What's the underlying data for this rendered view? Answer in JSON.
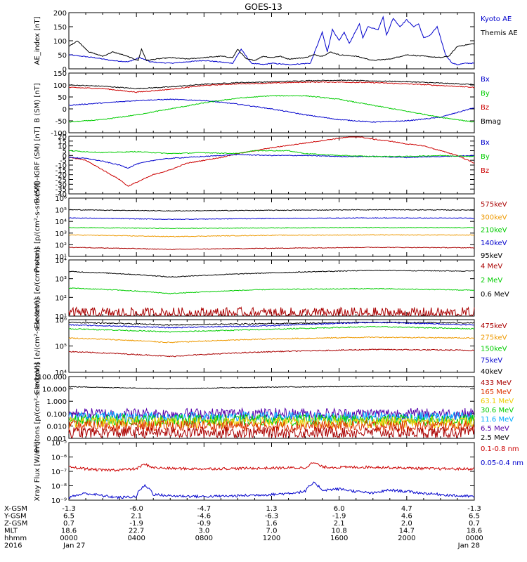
{
  "title": "GOES-13",
  "chart_data": [
    {
      "type": "line",
      "ylabel": "AE_index [nT]",
      "yscale": "linear",
      "ylim": [
        0,
        200
      ],
      "yticks": [
        "0",
        "50",
        "100",
        "150",
        "200"
      ],
      "legend": [
        {
          "label": "Kyoto AE",
          "color": "#0000cc"
        },
        {
          "label": "Themis AE",
          "color": "#000000"
        }
      ],
      "series": [
        {
          "name": "Kyoto AE",
          "color": "#0000cc",
          "x": [
            0,
            1.5,
            2.5,
            3.5,
            4.2,
            4.8,
            6,
            8,
            9.7,
            10.2,
            10.8,
            11.5,
            12,
            13,
            14.3,
            15,
            15.3,
            15.6,
            16,
            16.3,
            16.6,
            17.2,
            17.4,
            17.7,
            18.3,
            18.6,
            18.8,
            19.2,
            19.6,
            20,
            20.4,
            20.7,
            21,
            21.4,
            21.8,
            22.3,
            22.7,
            23,
            23.5,
            24
          ],
          "y": [
            50,
            40,
            30,
            25,
            40,
            25,
            20,
            30,
            20,
            70,
            20,
            15,
            20,
            15,
            20,
            130,
            60,
            140,
            100,
            130,
            90,
            160,
            110,
            150,
            140,
            185,
            120,
            180,
            150,
            175,
            150,
            160,
            110,
            120,
            150,
            50,
            20,
            15,
            20,
            20
          ]
        },
        {
          "name": "Themis AE",
          "color": "#000000",
          "x": [
            0,
            0.5,
            1.2,
            2,
            2.6,
            3.2,
            4.1,
            4.3,
            4.6,
            5.2,
            6,
            7,
            8,
            9,
            9.7,
            10,
            10.5,
            11,
            11.5,
            12,
            12.5,
            13,
            14,
            14.5,
            15,
            15.5,
            16,
            17,
            18,
            19,
            20,
            21,
            22,
            22.5,
            23,
            24
          ],
          "y": [
            80,
            100,
            60,
            45,
            60,
            50,
            30,
            70,
            30,
            35,
            40,
            35,
            40,
            45,
            40,
            70,
            35,
            30,
            45,
            40,
            45,
            35,
            40,
            50,
            45,
            60,
            50,
            45,
            30,
            35,
            50,
            45,
            40,
            45,
            80,
            90
          ]
        }
      ]
    },
    {
      "type": "line",
      "ylabel": "B (SM) [nT]",
      "yscale": "linear",
      "ylim": [
        -100,
        150
      ],
      "yticks": [
        "-100",
        "-50",
        "0",
        "50",
        "100",
        "150"
      ],
      "legend": [
        {
          "label": "Bx",
          "color": "#0000cc"
        },
        {
          "label": "By",
          "color": "#00cc00"
        },
        {
          "label": "Bz",
          "color": "#cc0000"
        },
        {
          "label": "Bmag",
          "color": "#000000"
        }
      ],
      "series": [
        {
          "name": "Bmag",
          "color": "#000000",
          "x": [
            0,
            2,
            4,
            6,
            8,
            10,
            12,
            14,
            16,
            18,
            20,
            22,
            24
          ],
          "y": [
            100,
            95,
            85,
            92,
            103,
            110,
            113,
            118,
            120,
            117,
            114,
            108,
            102
          ]
        },
        {
          "name": "Bz",
          "color": "#cc0000",
          "x": [
            0,
            2,
            4,
            6,
            8,
            10,
            12,
            14,
            16,
            18,
            20,
            22,
            24
          ],
          "y": [
            90,
            85,
            70,
            82,
            98,
            105,
            108,
            112,
            112,
            110,
            105,
            98,
            90
          ]
        },
        {
          "name": "Bx",
          "color": "#0000cc",
          "x": [
            0,
            2,
            4,
            6,
            8,
            10,
            12,
            14,
            16,
            18,
            20,
            22,
            24
          ],
          "y": [
            15,
            25,
            35,
            40,
            35,
            20,
            0,
            -25,
            -45,
            -55,
            -50,
            -35,
            5
          ]
        },
        {
          "name": "By",
          "color": "#00cc00",
          "x": [
            0,
            2,
            4,
            6,
            8,
            10,
            12,
            14,
            16,
            18,
            20,
            22,
            24
          ],
          "y": [
            -55,
            -45,
            -25,
            0,
            25,
            45,
            55,
            55,
            40,
            15,
            -10,
            -35,
            -55
          ]
        }
      ]
    },
    {
      "type": "line",
      "ylabel": "B (SM)-IGRF (SM) [nT]",
      "yscale": "linear",
      "ylim": [
        -40,
        20
      ],
      "yticks": [
        "-40",
        "-35",
        "-30",
        "-25",
        "-20",
        "-15",
        "-10",
        "-5",
        "0",
        "5",
        "10",
        "15",
        "20"
      ],
      "legend": [
        {
          "label": "Bx",
          "color": "#0000cc"
        },
        {
          "label": "By",
          "color": "#00cc00"
        },
        {
          "label": "Bz",
          "color": "#cc0000"
        }
      ],
      "series": [
        {
          "name": "Bz",
          "color": "#cc0000",
          "x": [
            0,
            1,
            2,
            3,
            3.5,
            4,
            5,
            6,
            7,
            8,
            9,
            10,
            11,
            12,
            14,
            16,
            17,
            18,
            19,
            20,
            21,
            22,
            23,
            24
          ],
          "y": [
            -2,
            -5,
            -15,
            -25,
            -32,
            -28,
            -20,
            -15,
            -8,
            -5,
            -2,
            2,
            5,
            8,
            13,
            18,
            20,
            17,
            15,
            12,
            10,
            5,
            0,
            -8
          ]
        },
        {
          "name": "Bx",
          "color": "#0000cc",
          "x": [
            0,
            1,
            2,
            3,
            3.5,
            4,
            5,
            6,
            7,
            8,
            10,
            12,
            14,
            16,
            18,
            20,
            22,
            24
          ],
          "y": [
            -2,
            -3,
            -6,
            -10,
            -13,
            -9,
            -5,
            -3,
            -2,
            -1,
            1,
            0,
            0,
            -1,
            -1,
            -2,
            -1,
            0
          ]
        },
        {
          "name": "By",
          "color": "#00cc00",
          "x": [
            0,
            2,
            4,
            6,
            8,
            10,
            11,
            12,
            13,
            14,
            16,
            18,
            20,
            22,
            24
          ],
          "y": [
            5,
            3,
            4,
            2,
            3,
            2,
            5,
            5,
            5,
            2,
            0,
            -1,
            -1,
            0,
            -1
          ]
        }
      ]
    },
    {
      "type": "line",
      "ylabel": "Protons [p/(cm²-s-sr-keV)]",
      "yscale": "log",
      "ylim": [
        10,
        1000000
      ],
      "yticks": [
        "10¹",
        "10²",
        "10³",
        "10⁴",
        "10⁵",
        "10⁶"
      ],
      "legend": [
        {
          "label": "575keV",
          "color": "#aa0000"
        },
        {
          "label": "300keV",
          "color": "#ee9900"
        },
        {
          "label": "210keV",
          "color": "#00cc00"
        },
        {
          "label": "140keV",
          "color": "#0000cc"
        },
        {
          "label": "95keV",
          "color": "#000000"
        }
      ],
      "series": [
        {
          "name": "95keV",
          "color": "#000000",
          "levels": [
            100000,
            80000,
            90000,
            100000,
            95000
          ]
        },
        {
          "name": "140keV",
          "color": "#0000cc",
          "levels": [
            20000,
            15000,
            18000,
            20000,
            19000
          ]
        },
        {
          "name": "210keV",
          "color": "#00cc00",
          "levels": [
            3000,
            2500,
            2800,
            3000,
            2900
          ]
        },
        {
          "name": "300keV",
          "color": "#ee9900",
          "levels": [
            700,
            500,
            650,
            700,
            680
          ]
        },
        {
          "name": "575keV",
          "color": "#aa0000",
          "levels": [
            60,
            40,
            50,
            60,
            55
          ]
        }
      ]
    },
    {
      "type": "line",
      "ylabel": "Electrons [e/(cm²-s-sr)]",
      "yscale": "log",
      "ylim": [
        10,
        100000
      ],
      "yticks": [
        "10¹",
        "10²",
        "10³",
        "10⁴"
      ],
      "legend": [
        {
          "label": "4 MeV",
          "color": "#aa0000"
        },
        {
          "label": "2 MeV",
          "color": "#00cc00"
        },
        {
          "label": "0.6 MeV",
          "color": "#000000"
        }
      ],
      "series": [
        {
          "name": "0.6 MeV",
          "color": "#000000",
          "levels": [
            15000,
            6000,
            12000,
            18000,
            16000
          ]
        },
        {
          "name": "2 MeV",
          "color": "#00cc00",
          "levels": [
            1000,
            400,
            800,
            900,
            700
          ]
        },
        {
          "name": "4 MeV",
          "color": "#aa0000",
          "levels": [
            15,
            15,
            15,
            15,
            15
          ]
        }
      ]
    },
    {
      "type": "line",
      "ylabel": "Electrons [e/(cm²-s-sr-keV)]",
      "yscale": "log",
      "ylim": [
        1000,
        1000000
      ],
      "yticks": [
        "10⁴",
        "10⁵",
        "10⁶"
      ],
      "legend": [
        {
          "label": "475keV",
          "color": "#aa0000"
        },
        {
          "label": "275keV",
          "color": "#ee9900"
        },
        {
          "label": "150keV",
          "color": "#00cc00"
        },
        {
          "label": "75keV",
          "color": "#0000cc"
        },
        {
          "label": "40keV",
          "color": "#000000"
        }
      ],
      "series": [
        {
          "name": "40keV",
          "color": "#000000",
          "levels": [
            700000,
            500000,
            600000,
            700000,
            650000
          ]
        },
        {
          "name": "75keV",
          "color": "#0000cc",
          "levels": [
            500000,
            350000,
            450000,
            700000,
            500000
          ]
        },
        {
          "name": "150keV",
          "color": "#00cc00",
          "levels": [
            300000,
            200000,
            280000,
            400000,
            300000
          ]
        },
        {
          "name": "275keV",
          "color": "#ee9900",
          "levels": [
            90000,
            50000,
            80000,
            100000,
            90000
          ]
        },
        {
          "name": "475keV",
          "color": "#aa0000",
          "levels": [
            15000,
            8000,
            15000,
            20000,
            18000
          ]
        }
      ]
    },
    {
      "type": "line",
      "ylabel": "Protons [p/(cm²-s-sr-keV)]",
      "yscale": "log",
      "ylim": [
        0.001,
        100
      ],
      "yticks": [
        "0.001",
        "0.010",
        "0.100",
        "1.000",
        "10.000",
        "100.000"
      ],
      "legend": [
        {
          "label": "433 MeV",
          "color": "#aa0000"
        },
        {
          "label": "165 MeV",
          "color": "#dd3300"
        },
        {
          "label": "63.1 MeV",
          "color": "#eecc00"
        },
        {
          "label": "30.6 MeV",
          "color": "#00cc00"
        },
        {
          "label": "11.6 MeV",
          "color": "#00aaff"
        },
        {
          "label": "6.5 MeV",
          "color": "#5500aa"
        },
        {
          "label": "2.5 MeV",
          "color": "#000000"
        }
      ],
      "series": [
        {
          "name": "2.5 MeV",
          "color": "#000000",
          "levels": [
            15,
            10,
            14,
            16,
            15
          ]
        },
        {
          "name": "6.5 MeV",
          "color": "#5500aa",
          "levels": [
            0.1,
            0.1,
            0.1,
            0.1,
            0.1
          ]
        },
        {
          "name": "11.6 MeV",
          "color": "#00aaff",
          "levels": [
            0.05,
            0.05,
            0.05,
            0.05,
            0.05
          ]
        },
        {
          "name": "30.6 MeV",
          "color": "#00cc00",
          "levels": [
            0.03,
            0.03,
            0.03,
            0.03,
            0.03
          ]
        },
        {
          "name": "63.1 MeV",
          "color": "#eecc00",
          "levels": [
            0.02,
            0.02,
            0.02,
            0.02,
            0.02
          ]
        },
        {
          "name": "165 MeV",
          "color": "#dd3300",
          "levels": [
            0.01,
            0.01,
            0.01,
            0.01,
            0.01
          ]
        },
        {
          "name": "433 MeV",
          "color": "#aa0000",
          "levels": [
            0.003,
            0.003,
            0.003,
            0.003,
            0.003
          ]
        }
      ]
    },
    {
      "type": "line",
      "ylabel": "Xray Flux [W/m²]",
      "yscale": "log",
      "ylim": [
        1e-09,
        1e-05
      ],
      "yticks": [
        "10⁻⁹",
        "10⁻⁸",
        "10⁻⁷",
        "10⁻⁶",
        "10⁻⁵"
      ],
      "legend": [
        {
          "label": "0.1-0.8 nm",
          "color": "#cc0000"
        },
        {
          "label": "0.05-0.4 nm",
          "color": "#0000cc"
        }
      ],
      "series": [
        {
          "name": "0.1-0.8 nm",
          "color": "#cc0000",
          "x": [
            0,
            1,
            2,
            3,
            4,
            4.5,
            5,
            6,
            8,
            10,
            12,
            14,
            14.5,
            15,
            16,
            18,
            20,
            22,
            24
          ],
          "y": [
            2e-07,
            1.5e-07,
            1.2e-07,
            1.3e-07,
            1.5e-07,
            3e-07,
            1.8e-07,
            1.6e-07,
            1.5e-07,
            1.6e-07,
            1.7e-07,
            1.8e-07,
            4e-07,
            2e-07,
            1.9e-07,
            2e-07,
            1.7e-07,
            1.5e-07,
            1.5e-07
          ]
        },
        {
          "name": "0.05-0.4 nm",
          "color": "#0000cc",
          "x": [
            0,
            1,
            2,
            3,
            4,
            4.5,
            5,
            6,
            8,
            10,
            12,
            13,
            14,
            14.5,
            15,
            16,
            17,
            18,
            19,
            20,
            21,
            22,
            23,
            24
          ],
          "y": [
            1.5e-09,
            3e-09,
            2e-09,
            1.5e-09,
            1.8e-09,
            1e-08,
            2.5e-09,
            2e-09,
            1.8e-09,
            2e-09,
            2.5e-09,
            3e-09,
            4e-09,
            1.5e-08,
            5e-09,
            6e-09,
            4e-09,
            3e-09,
            5e-09,
            4e-09,
            3e-09,
            2.5e-09,
            2e-09,
            1.8e-09
          ]
        }
      ]
    }
  ],
  "time_axis": {
    "row_labels": [
      "X-GSM",
      "Y-GSM",
      "Z-GSM",
      "MLT",
      "hhmm",
      "2016"
    ],
    "columns": [
      [
        "-1.3",
        "6.5",
        "0.7",
        "18.6",
        "0000",
        "Jan 27"
      ],
      [
        "-6.0",
        "2.1",
        "-1.9",
        "22.7",
        "0400",
        ""
      ],
      [
        "-4.7",
        "-4.6",
        "-0.9",
        "3.0",
        "0800",
        ""
      ],
      [
        "1.3",
        "-6.3",
        "1.6",
        "7.0",
        "1200",
        ""
      ],
      [
        "6.0",
        "-1.9",
        "2.1",
        "10.8",
        "1600",
        ""
      ],
      [
        "4.7",
        "4.6",
        "2.0",
        "14.7",
        "2000",
        ""
      ],
      [
        "-1.3",
        "6.5",
        "0.7",
        "18.6",
        "0000",
        "Jan 28"
      ]
    ]
  }
}
